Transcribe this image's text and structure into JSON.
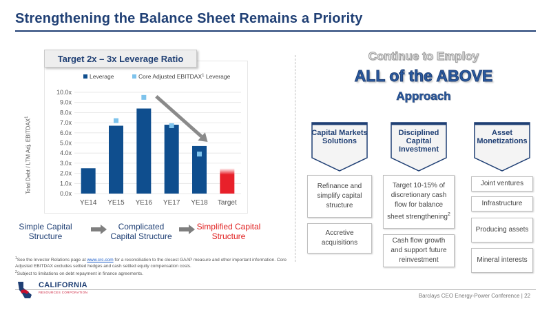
{
  "header": {
    "title": "Strengthening the Balance Sheet Remains a Priority"
  },
  "chart_banner": "Target 2x – 3x Leverage Ratio",
  "chart_data": {
    "type": "bar",
    "categories": [
      "YE14",
      "YE15",
      "YE16",
      "YE17",
      "YE18",
      "Target"
    ],
    "series": [
      {
        "name": "Leverage",
        "values": [
          2.5,
          6.7,
          8.4,
          6.8,
          4.7,
          2.5
        ],
        "color": "#0f4e8e"
      },
      {
        "name": "Core Adjusted EBITDAX¹ Leverage",
        "values": [
          null,
          7.2,
          9.5,
          6.7,
          3.9,
          null
        ],
        "color": "#7ec3ec"
      }
    ],
    "highlight": {
      "category": "Target",
      "color": "#e8202a"
    },
    "legend_labels": {
      "leverage": "Leverage",
      "core_prefix": "Core Adjusted EBITDAX",
      "core_sup": "1",
      "core_suffix": " Leverage"
    },
    "ylabel": {
      "text": "Total Debt / LTM Adj. EBITDAX",
      "sup": "1"
    },
    "yticks": [
      "0.0x",
      "1.0x",
      "2.0x",
      "3.0x",
      "4.0x",
      "5.0x",
      "6.0x",
      "7.0x",
      "8.0x",
      "9.0x",
      "10.0x"
    ],
    "ylim": [
      0,
      10
    ],
    "trend_arrow": {
      "from_category": "YE16",
      "to_category": "YE18"
    },
    "grid": true,
    "legend_position": "top"
  },
  "capital_structure": {
    "simple": "Simple Capital Structure",
    "complicated": "Complicated Capital Structure",
    "simplified": "Simplified Capital Structure",
    "simple_color": "#1f3f74",
    "simplified_color": "#e02020"
  },
  "footnotes": {
    "note1_pre": "See the Investor Relations page at ",
    "note1_link": "www.crc.com",
    "note1_post": " for a reconciliation to the closest GAAP measure and other important information. Core Adjusted EBITDAX excludes settled hedges and cash settled equity compensation costs.",
    "note2": "Subject to limitations on debt repayment in finance agreements."
  },
  "strategy": {
    "continue": "Continue to Employ",
    "all_above": "ALL of the ABOVE",
    "approach": "Approach",
    "columns": [
      {
        "heading": "Capital Markets Solutions",
        "items": [
          "Refinance and simplify capital structure",
          "Accretive acquisitions"
        ]
      },
      {
        "heading": "Disciplined Capital Investment",
        "items": [
          "Target 10-15% of discretionary cash flow for balance sheet strengthening",
          "Cash flow growth and support future reinvestment"
        ],
        "item0_sup": "2"
      },
      {
        "heading": "Asset Monetizations",
        "items": [
          "Joint ventures",
          "Infrastructure",
          "Producing assets",
          "Mineral interests"
        ]
      }
    ]
  },
  "logo": {
    "name": "CALIFORNIA",
    "sub": "RESOURCES CORPORATION",
    "icon": "california-state-icon"
  },
  "footer": "Barclays CEO Energy-Power Conference | 22",
  "colors": {
    "accent": "#1f3f74",
    "bar_dark": "#0f4e8e",
    "bar_light": "#7ec3ec",
    "target": "#e8202a"
  }
}
